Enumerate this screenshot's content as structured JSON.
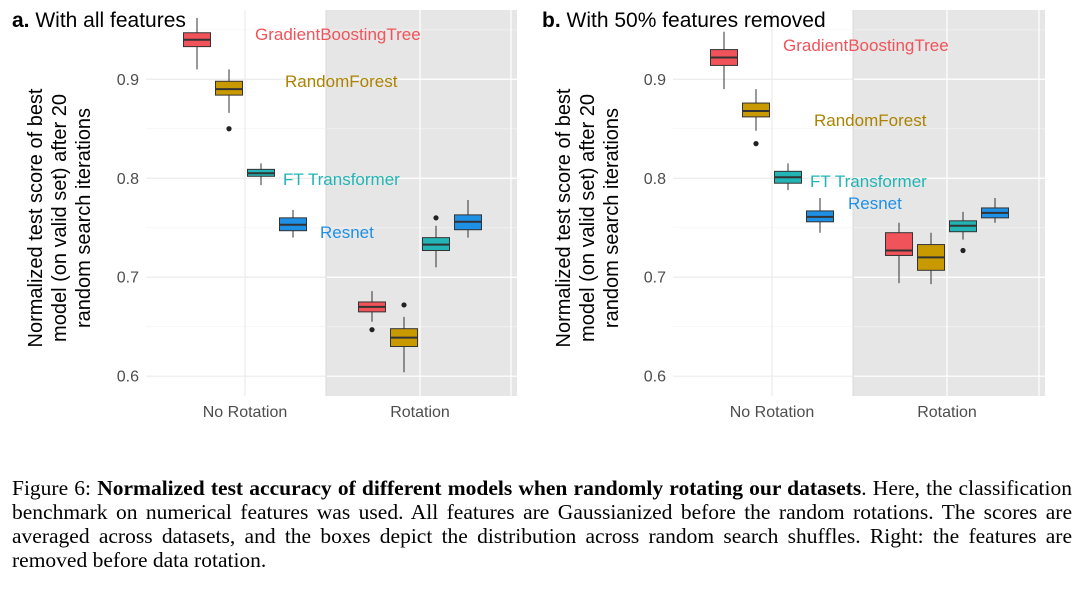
{
  "chart_data": [
    {
      "type": "boxplot",
      "panel_letter": "a.",
      "title": "With all features",
      "ylabel_lines": [
        "Normalized test score of best",
        "model (on valid set) after 20",
        "random search iterations"
      ],
      "xlabel": "",
      "categories": [
        "No Rotation",
        "Rotation"
      ],
      "ylim": [
        0.58,
        0.97
      ],
      "yticks": [
        "0.6",
        "0.7",
        "0.8",
        "0.9"
      ],
      "shaded_category": "Rotation",
      "grid": true,
      "series": [
        {
          "name": "GradientBoostingTree",
          "color": "#f0535a",
          "boxes": [
            {
              "category": "No Rotation",
              "min": 0.91,
              "q1": 0.933,
              "median": 0.94,
              "q3": 0.947,
              "max": 0.962,
              "outliers": []
            },
            {
              "category": "Rotation",
              "min": 0.655,
              "q1": 0.665,
              "median": 0.67,
              "q3": 0.675,
              "max": 0.686,
              "outliers": [
                0.647
              ]
            }
          ]
        },
        {
          "name": "RandomForest",
          "color": "#c99a00",
          "boxes": [
            {
              "category": "No Rotation",
              "min": 0.866,
              "q1": 0.884,
              "median": 0.89,
              "q3": 0.898,
              "max": 0.91,
              "outliers": [
                0.85
              ]
            },
            {
              "category": "Rotation",
              "min": 0.604,
              "q1": 0.63,
              "median": 0.639,
              "q3": 0.648,
              "max": 0.66,
              "outliers": [
                0.672
              ]
            }
          ]
        },
        {
          "name": "FT Transformer",
          "color": "#23b5b5",
          "boxes": [
            {
              "category": "No Rotation",
              "min": 0.793,
              "q1": 0.802,
              "median": 0.805,
              "q3": 0.809,
              "max": 0.815,
              "outliers": []
            },
            {
              "category": "Rotation",
              "min": 0.71,
              "q1": 0.727,
              "median": 0.733,
              "q3": 0.74,
              "max": 0.752,
              "outliers": [
                0.76
              ]
            }
          ]
        },
        {
          "name": "Resnet",
          "color": "#1e90e6",
          "boxes": [
            {
              "category": "No Rotation",
              "min": 0.74,
              "q1": 0.747,
              "median": 0.753,
              "q3": 0.76,
              "max": 0.768,
              "outliers": []
            },
            {
              "category": "Rotation",
              "min": 0.74,
              "q1": 0.748,
              "median": 0.756,
              "q3": 0.763,
              "max": 0.778,
              "outliers": []
            }
          ]
        }
      ]
    },
    {
      "type": "boxplot",
      "panel_letter": "b.",
      "title": "With 50% features removed",
      "ylabel_lines": [
        "Normalized test score of best",
        "model (on valid set) after 20",
        "random search iterations"
      ],
      "xlabel": "",
      "categories": [
        "No Rotation",
        "Rotation"
      ],
      "ylim": [
        0.58,
        0.97
      ],
      "yticks": [
        "0.6",
        "0.7",
        "0.8",
        "0.9"
      ],
      "shaded_category": "Rotation",
      "grid": true,
      "series": [
        {
          "name": "GradientBoostingTree",
          "color": "#f0535a",
          "boxes": [
            {
              "category": "No Rotation",
              "min": 0.89,
              "q1": 0.914,
              "median": 0.922,
              "q3": 0.93,
              "max": 0.948,
              "outliers": []
            },
            {
              "category": "Rotation",
              "min": 0.694,
              "q1": 0.722,
              "median": 0.727,
              "q3": 0.745,
              "max": 0.755,
              "outliers": []
            }
          ]
        },
        {
          "name": "RandomForest",
          "color": "#c99a00",
          "boxes": [
            {
              "category": "No Rotation",
              "min": 0.848,
              "q1": 0.862,
              "median": 0.868,
              "q3": 0.876,
              "max": 0.89,
              "outliers": [
                0.835
              ]
            },
            {
              "category": "Rotation",
              "min": 0.693,
              "q1": 0.707,
              "median": 0.72,
              "q3": 0.733,
              "max": 0.745,
              "outliers": []
            }
          ]
        },
        {
          "name": "FT Transformer",
          "color": "#23b5b5",
          "boxes": [
            {
              "category": "No Rotation",
              "min": 0.788,
              "q1": 0.795,
              "median": 0.801,
              "q3": 0.807,
              "max": 0.815,
              "outliers": []
            },
            {
              "category": "Rotation",
              "min": 0.738,
              "q1": 0.746,
              "median": 0.752,
              "q3": 0.757,
              "max": 0.766,
              "outliers": [
                0.727
              ]
            }
          ]
        },
        {
          "name": "Resnet",
          "color": "#1e90e6",
          "boxes": [
            {
              "category": "No Rotation",
              "min": 0.745,
              "q1": 0.756,
              "median": 0.761,
              "q3": 0.767,
              "max": 0.78,
              "outliers": []
            },
            {
              "category": "Rotation",
              "min": 0.755,
              "q1": 0.76,
              "median": 0.765,
              "q3": 0.77,
              "max": 0.78,
              "outliers": []
            }
          ]
        }
      ]
    }
  ],
  "caption": {
    "prefix": "Figure 6: ",
    "bold": "Normalized test accuracy of different models when randomly rotating our datasets",
    "rest": ". Here, the classification benchmark on numerical features was used. All features are Gaussianized before the random rotations.  The scores are averaged across datasets, and the boxes depict the distribution across random search shuffles. Right: the features are removed before data rotation."
  }
}
